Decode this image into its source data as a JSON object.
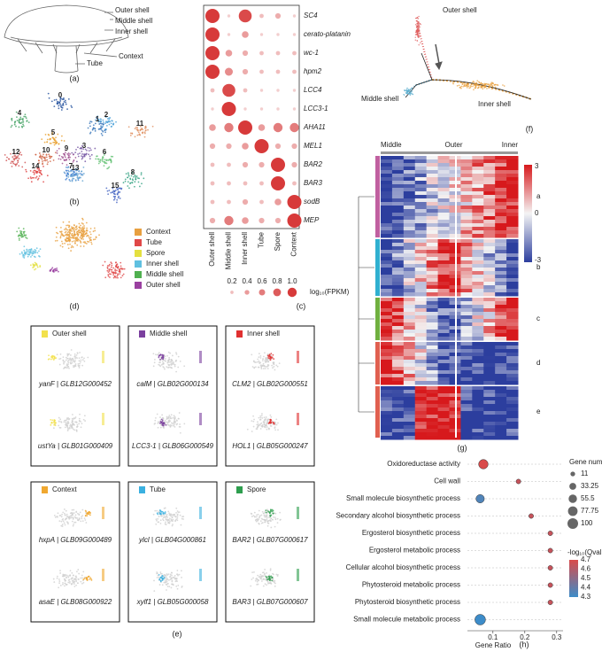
{
  "panel_a": {
    "label": "(a)",
    "parts": [
      "Outer shell",
      "Middle shell",
      "Inner shell",
      "Context",
      "Tube"
    ]
  },
  "panel_b": {
    "label": "(b)",
    "clusters": [
      "0",
      "1",
      "2",
      "3",
      "4",
      "5",
      "6",
      "7",
      "8",
      "9",
      "10",
      "11",
      "12",
      "13",
      "14",
      "15"
    ]
  },
  "panel_c": {
    "label": "(c)",
    "genes": [
      "SC4",
      "cerato-platanin",
      "wc-1",
      "hpm2",
      "LCC4",
      "LCC3-1",
      "AHA11",
      "MEL1",
      "BAR2",
      "BAR3",
      "sodB",
      "MEP"
    ],
    "tissues": [
      "Outer shell",
      "Middle shell",
      "Inner shell",
      "Tube",
      "Spore",
      "Context"
    ],
    "values": [
      [
        1.0,
        0.1,
        0.9,
        0.2,
        0.3,
        0.1
      ],
      [
        1.0,
        0.1,
        0.4,
        0.1,
        0.1,
        0.1
      ],
      [
        1.0,
        0.4,
        0.3,
        0.2,
        0.2,
        0.2
      ],
      [
        1.0,
        0.5,
        0.3,
        0.2,
        0.2,
        0.2
      ],
      [
        0.2,
        0.9,
        0.2,
        0.1,
        0.1,
        0.1
      ],
      [
        0.1,
        1.0,
        0.1,
        0.1,
        0.1,
        0.1
      ],
      [
        0.4,
        0.6,
        1.0,
        0.4,
        0.6,
        0.6
      ],
      [
        0.3,
        0.3,
        0.4,
        1.0,
        0.3,
        0.3
      ],
      [
        0.2,
        0.2,
        0.3,
        0.3,
        1.0,
        0.3
      ],
      [
        0.2,
        0.2,
        0.2,
        0.2,
        1.0,
        0.2
      ],
      [
        0.2,
        0.2,
        0.3,
        0.2,
        0.4,
        1.0
      ],
      [
        0.3,
        0.6,
        0.4,
        0.3,
        0.3,
        1.0
      ]
    ],
    "legend_ticks": [
      0.2,
      0.4,
      0.6,
      0.8,
      {
        "value": 1.0,
        "label": "1.0"
      }
    ],
    "legend_title": "log₁₀(FPKM)",
    "color": "#d73a3a"
  },
  "panel_d": {
    "label": "(d)",
    "legend": [
      {
        "name": "Context",
        "color": "#e8a040"
      },
      {
        "name": "Tube",
        "color": "#e04848"
      },
      {
        "name": "Spore",
        "color": "#e4e040"
      },
      {
        "name": "Inner shell",
        "color": "#60c0e0"
      },
      {
        "name": "Middle shell",
        "color": "#50b050"
      },
      {
        "name": "Outer shell",
        "color": "#9a40a0"
      }
    ]
  },
  "panel_e": {
    "label": "(e)",
    "boxes": [
      {
        "title": "Outer shell",
        "color": "#f2e14c",
        "genes": [
          "yanF | GLB12G000452",
          "ustYa | GLB01G000409"
        ]
      },
      {
        "title": "Middle shell",
        "color": "#7b3f9e",
        "genes": [
          "calM | GLB02G000134",
          "LCC3-1 | GLB06G000549"
        ]
      },
      {
        "title": "Inner shell",
        "color": "#e03030",
        "genes": [
          "CLM2 | GLB02G000551",
          "HOL1 | GLB05G000247"
        ]
      },
      {
        "title": "Context",
        "color": "#f0a830",
        "genes": [
          "hxpA | GLB09G000489",
          "asaE | GLB08G000922"
        ]
      },
      {
        "title": "Tube",
        "color": "#3ab0e0",
        "genes": [
          "ylcl | GLB04G000861",
          "xylf1 | GLB05G000058"
        ]
      },
      {
        "title": "Spore",
        "color": "#2e9e4e",
        "genes": [
          "BAR2 | GLB07G000617",
          "BAR3 | GLB07G000607"
        ]
      }
    ]
  },
  "panel_f": {
    "label": "(f)",
    "labels": [
      "Outer shell",
      "Middle shell",
      "Inner shell"
    ]
  },
  "panel_g": {
    "label": "(g)",
    "columns": [
      "Middle",
      "Outer",
      "Inner"
    ],
    "clusters": [
      "a",
      "b",
      "c",
      "d",
      "e"
    ],
    "colorbar_ticks": [
      3,
      0,
      -3
    ]
  },
  "panel_h": {
    "label": "(h)",
    "terms": [
      "Oxidoreductase activity",
      "Cell wall",
      "Small molecule biosynthetic process",
      "Secondary alcohol biosynthetic process",
      "Ergosterol biosynthetic process",
      "Ergosterol metabolic process",
      "Cellular alcohol biosynthetic process",
      "Phytosteroid metabolic process",
      "Phytosteroid biosynthetic process",
      "Small molecule metabolic process"
    ],
    "gene_ratio": [
      0.07,
      0.18,
      0.06,
      0.22,
      0.28,
      0.28,
      0.28,
      0.28,
      0.28,
      0.06
    ],
    "gene_number": [
      75,
      11,
      55,
      11,
      11,
      11,
      11,
      11,
      11,
      100
    ],
    "qvalue": [
      4.7,
      4.65,
      4.35,
      4.65,
      4.65,
      4.65,
      4.65,
      4.65,
      4.65,
      4.3
    ],
    "xlim": [
      0.02,
      0.32
    ],
    "xticks": [
      0.1,
      0.2,
      0.3
    ],
    "xlabel": "Gene Ratio",
    "size_title": "Gene number",
    "size_ticks": [
      11,
      33.25,
      55.5,
      77.75,
      100
    ],
    "color_title": "-log₁₀(Qvalue)",
    "color_ticks": [
      4.7,
      4.6,
      4.5,
      4.4,
      4.3
    ]
  }
}
